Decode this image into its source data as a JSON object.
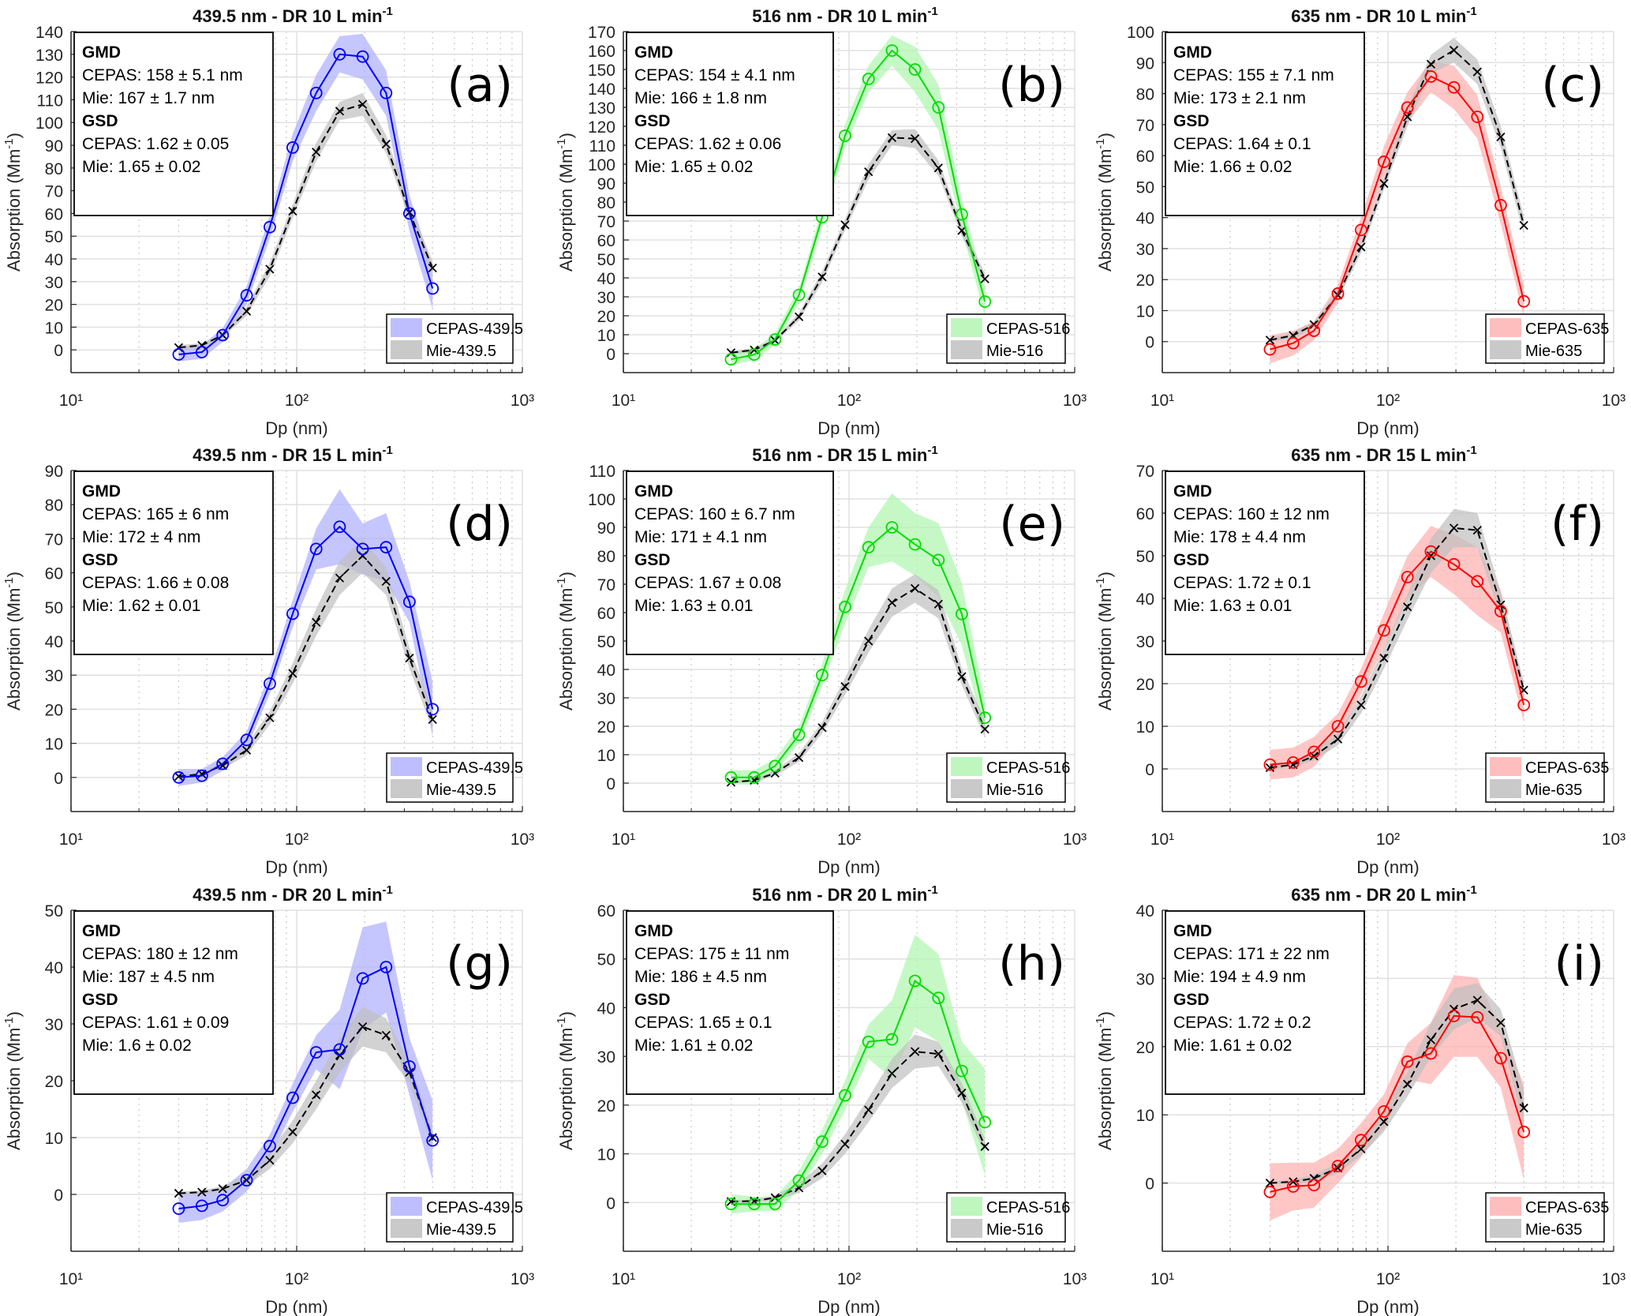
{
  "figure": {
    "xlabel": "Dp (nm)",
    "ylabel": "Absorption (Mm⁻¹)",
    "xticks": [
      "10¹",
      "10²",
      "10³"
    ],
    "colors": {
      "439.5": {
        "line": "#0000ff",
        "band": "#b3b3ff"
      },
      "516": {
        "line": "#00dd00",
        "band": "#b3f5b3"
      },
      "635": {
        "line": "#ff0000",
        "band": "#ffb3b3"
      },
      "mie": {
        "line": "#000000",
        "band": "#bfbfbf"
      }
    }
  },
  "chart_data": [
    {
      "id": "a",
      "type": "line",
      "tag": "(a)",
      "title": "439.5 nm - DR 10 L min",
      "title_sup": "-1",
      "xlabel": "Dp (nm)",
      "ylabel": "Absorption (Mm-1)",
      "xscale": "log",
      "xlim": [
        10,
        1000
      ],
      "ylim": [
        -10,
        140
      ],
      "ystep": 10,
      "grid": true,
      "legend": [
        "CEPAS-439.5",
        "Mie-439.5"
      ],
      "legend_position": "bottom-right",
      "wavelength": "439.5",
      "annotation": {
        "gmd_head": "GMD",
        "gmd_cepas": "CEPAS: 158 ± 5.1 nm",
        "gmd_mie": "Mie: 167 ± 1.7 nm",
        "gsd_head": "GSD",
        "gsd_cepas": "CEPAS: 1.62 ± 0.05",
        "gsd_mie": "Mie: 1.65 ± 0.02"
      },
      "x": [
        30,
        38,
        47,
        60,
        76,
        96,
        122,
        155,
        196,
        249,
        316,
        400
      ],
      "series": [
        {
          "name": "CEPAS-439.5",
          "values": [
            -2,
            -1,
            6.5,
            24,
            54,
            89,
            113,
            130,
            129,
            113,
            60,
            27
          ],
          "band": [
            3,
            3,
            3,
            4,
            5,
            6,
            8,
            8,
            10,
            10,
            8,
            9
          ]
        },
        {
          "name": "Mie-439.5",
          "values": [
            1,
            2,
            6.5,
            17,
            35.5,
            61,
            87,
            105,
            108,
            90.5,
            60.5,
            36
          ],
          "band": [
            1,
            1,
            1,
            2,
            3,
            3,
            4,
            4,
            5,
            4,
            3,
            3
          ]
        }
      ]
    },
    {
      "id": "b",
      "type": "line",
      "tag": "(b)",
      "title": "516 nm - DR 10 L min",
      "title_sup": "-1",
      "xlabel": "Dp (nm)",
      "ylabel": "Absorption (Mm-1)",
      "xscale": "log",
      "xlim": [
        10,
        1000
      ],
      "ylim": [
        -10,
        170
      ],
      "ystep": 10,
      "grid": true,
      "legend": [
        "CEPAS-516",
        "Mie-516"
      ],
      "legend_position": "bottom-right",
      "wavelength": "516",
      "annotation": {
        "gmd_head": "GMD",
        "gmd_cepas": "CEPAS: 154 ± 4.1 nm",
        "gmd_mie": "Mie: 166 ± 1.8 nm",
        "gsd_head": "GSD",
        "gsd_cepas": "CEPAS: 1.62 ± 0.06",
        "gsd_mie": "Mie: 1.65 ± 0.02"
      },
      "x": [
        30,
        38,
        47,
        60,
        76,
        96,
        122,
        155,
        196,
        249,
        316,
        400
      ],
      "series": [
        {
          "name": "CEPAS-516",
          "values": [
            -3,
            -0.5,
            7.5,
            31,
            72,
            115,
            145,
            160,
            150,
            130,
            73.5,
            27.5
          ],
          "band": [
            3,
            3,
            3,
            4,
            5,
            6,
            7,
            8,
            12,
            12,
            8,
            8
          ]
        },
        {
          "name": "Mie-516",
          "values": [
            0.5,
            2,
            7,
            19.5,
            40.5,
            68,
            96,
            114,
            113.5,
            98,
            65,
            39.5
          ],
          "band": [
            1,
            1,
            1,
            2,
            3,
            3,
            4,
            4,
            5,
            4,
            3,
            3
          ]
        }
      ]
    },
    {
      "id": "c",
      "type": "line",
      "tag": "(c)",
      "title": "635 nm - DR 10 L min",
      "title_sup": "-1",
      "xlabel": "Dp (nm)",
      "ylabel": "Absorption (Mm-1)",
      "xscale": "log",
      "xlim": [
        10,
        1000
      ],
      "ylim": [
        -10,
        100
      ],
      "ystep": 10,
      "grid": true,
      "legend": [
        "CEPAS-635",
        "Mie-635"
      ],
      "legend_position": "bottom-right",
      "wavelength": "635",
      "annotation": {
        "gmd_head": "GMD",
        "gmd_cepas": "CEPAS: 155 ± 7.1 nm",
        "gmd_mie": "Mie: 173 ± 2.1 nm",
        "gsd_head": "GSD",
        "gsd_cepas": "CEPAS: 1.64 ± 0.1",
        "gsd_mie": "Mie: 1.66 ± 0.02"
      },
      "x": [
        30,
        38,
        47,
        60,
        76,
        96,
        122,
        155,
        196,
        249,
        316,
        400
      ],
      "series": [
        {
          "name": "CEPAS-635",
          "values": [
            -2.5,
            -0.5,
            3.5,
            15.5,
            36,
            58,
            75.5,
            85.5,
            82,
            72.5,
            44,
            13
          ],
          "band": [
            4.5,
            4,
            3,
            3,
            4,
            5,
            5,
            5,
            7,
            7,
            6,
            5
          ]
        },
        {
          "name": "Mie-635",
          "values": [
            0.5,
            2,
            5.5,
            15,
            30.5,
            51,
            72.5,
            89.5,
            94,
            87,
            66,
            37.5
          ],
          "band": [
            0.5,
            1,
            1,
            1.5,
            2,
            2,
            3,
            3,
            4,
            4,
            3.5,
            3
          ]
        }
      ]
    },
    {
      "id": "d",
      "type": "line",
      "tag": "(d)",
      "title": "439.5 nm - DR 15 L min",
      "title_sup": "-1",
      "xlabel": "Dp (nm)",
      "ylabel": "Absorption (Mm-1)",
      "xscale": "log",
      "xlim": [
        10,
        1000
      ],
      "ylim": [
        -10,
        90
      ],
      "ystep": 10,
      "grid": true,
      "legend": [
        "CEPAS-439.5",
        "Mie-439.5"
      ],
      "legend_position": "bottom-right",
      "wavelength": "439.5",
      "annotation": {
        "gmd_head": "GMD",
        "gmd_cepas": "CEPAS: 165 ± 6 nm",
        "gmd_mie": "Mie: 172 ± 4 nm",
        "gsd_head": "GSD",
        "gsd_cepas": "CEPAS: 1.66 ± 0.08",
        "gsd_mie": "Mie: 1.62 ± 0.01"
      },
      "x": [
        30,
        38,
        47,
        60,
        76,
        96,
        122,
        155,
        196,
        249,
        316,
        400
      ],
      "series": [
        {
          "name": "CEPAS-439.5",
          "values": [
            0,
            0.5,
            4,
            11,
            27.5,
            48,
            67,
            73.5,
            67,
            67.5,
            51.5,
            20
          ],
          "band": [
            2.5,
            2,
            2,
            2.5,
            3,
            4,
            6,
            11,
            7.5,
            10,
            6,
            8
          ]
        },
        {
          "name": "Mie-439.5",
          "values": [
            0.3,
            1,
            3.5,
            8,
            17.5,
            30.5,
            45.5,
            58.5,
            65,
            57.5,
            35,
            17
          ],
          "band": [
            0.5,
            0.5,
            1,
            1.5,
            2,
            3,
            4,
            5,
            5,
            4,
            3,
            3
          ]
        }
      ]
    },
    {
      "id": "e",
      "type": "line",
      "tag": "(e)",
      "title": "516 nm - DR 15 L min",
      "title_sup": "-1",
      "xlabel": "Dp (nm)",
      "ylabel": "Absorption (Mm-1)",
      "xscale": "log",
      "xlim": [
        10,
        1000
      ],
      "ylim": [
        -10,
        110
      ],
      "ystep": 10,
      "grid": true,
      "legend": [
        "CEPAS-516",
        "Mie-516"
      ],
      "legend_position": "bottom-right",
      "wavelength": "516",
      "annotation": {
        "gmd_head": "GMD",
        "gmd_cepas": "CEPAS: 160 ± 6.7 nm",
        "gmd_mie": "Mie: 171 ± 4.1 nm",
        "gsd_head": "GSD",
        "gsd_cepas": "CEPAS: 1.67 ± 0.08",
        "gsd_mie": "Mie: 1.63 ± 0.01"
      },
      "x": [
        30,
        38,
        47,
        60,
        76,
        96,
        122,
        155,
        196,
        249,
        316,
        400
      ],
      "series": [
        {
          "name": "CEPAS-516",
          "values": [
            2,
            2,
            6,
            17,
            38,
            62,
            83,
            90,
            84,
            78.5,
            59.5,
            23
          ],
          "band": [
            2.5,
            2.5,
            2.5,
            3,
            4,
            6,
            7,
            12,
            11,
            13,
            11,
            6
          ]
        },
        {
          "name": "Mie-516",
          "values": [
            0.3,
            1,
            3.5,
            9,
            19.5,
            34,
            50,
            63.5,
            68.5,
            63,
            37.5,
            19
          ],
          "band": [
            0.5,
            0.5,
            1,
            1.5,
            2,
            3,
            4,
            5,
            5,
            5,
            3,
            3
          ]
        }
      ]
    },
    {
      "id": "f",
      "type": "line",
      "tag": "(f)",
      "title": "635 nm - DR 15 L min",
      "title_sup": "-1",
      "xlabel": "Dp (nm)",
      "ylabel": "Absorption (Mm-1)",
      "xscale": "log",
      "xlim": [
        10,
        1000
      ],
      "ylim": [
        -10,
        70
      ],
      "ystep": 10,
      "grid": true,
      "legend": [
        "CEPAS-635",
        "Mie-635"
      ],
      "legend_position": "bottom-right",
      "wavelength": "635",
      "annotation": {
        "gmd_head": "GMD",
        "gmd_cepas": "CEPAS: 160 ± 12 nm",
        "gmd_mie": "Mie: 178 ± 4.4 nm",
        "gsd_head": "GSD",
        "gsd_cepas": "CEPAS: 1.72 ± 0.1",
        "gsd_mie": "Mie: 1.63 ± 0.01"
      },
      "x": [
        30,
        38,
        47,
        60,
        76,
        96,
        122,
        155,
        196,
        249,
        316,
        400
      ],
      "series": [
        {
          "name": "CEPAS-635",
          "values": [
            1,
            1.5,
            4,
            10,
            20.5,
            32.5,
            45,
            51,
            48,
            44,
            37,
            15
          ],
          "band": [
            3.5,
            3.5,
            3.5,
            3,
            3,
            4,
            5,
            6,
            7,
            8,
            5,
            4
          ]
        },
        {
          "name": "Mie-635",
          "values": [
            0.3,
            1,
            3,
            7,
            15,
            26,
            38,
            50,
            56.5,
            56,
            38.5,
            18.5
          ],
          "band": [
            0.5,
            0.5,
            1,
            1.5,
            2,
            2.5,
            3,
            4,
            4.5,
            4,
            3,
            2
          ]
        }
      ]
    },
    {
      "id": "g",
      "type": "line",
      "tag": "(g)",
      "title": "439.5 nm - DR 20 L min",
      "title_sup": "-1",
      "xlabel": "Dp (nm)",
      "ylabel": "Absorption (Mm-1)",
      "xscale": "log",
      "xlim": [
        10,
        1000
      ],
      "ylim": [
        -10,
        50
      ],
      "ystep": 10,
      "grid": true,
      "legend": [
        "CEPAS-439.5",
        "Mie-439.5"
      ],
      "legend_position": "bottom-right",
      "wavelength": "439.5",
      "annotation": {
        "gmd_head": "GMD",
        "gmd_cepas": "CEPAS: 180 ± 12 nm",
        "gmd_mie": "Mie: 187 ± 4.5 nm",
        "gsd_head": "GSD",
        "gsd_cepas": "CEPAS: 1.61 ± 0.09",
        "gsd_mie": "Mie: 1.6 ± 0.02"
      },
      "x": [
        30,
        38,
        47,
        60,
        76,
        96,
        122,
        155,
        196,
        249,
        316,
        400
      ],
      "series": [
        {
          "name": "CEPAS-439.5",
          "values": [
            -2.5,
            -2,
            -1,
            2.5,
            8.5,
            17,
            25,
            25.5,
            38,
            40,
            22.5,
            9.5
          ],
          "band": [
            2.5,
            2.5,
            2,
            2,
            2,
            2.5,
            3,
            7,
            9,
            8,
            5,
            7
          ]
        },
        {
          "name": "Mie-439.5",
          "values": [
            0.2,
            0.4,
            1,
            2.5,
            6,
            11,
            17.5,
            24.5,
            29.5,
            28,
            21.5,
            10
          ],
          "band": [
            0.3,
            0.3,
            0.5,
            1,
            1.5,
            2,
            2.5,
            3,
            3.5,
            3,
            2,
            1.5
          ]
        }
      ]
    },
    {
      "id": "h",
      "type": "line",
      "tag": "(h)",
      "title": "516 nm - DR 20 L min",
      "title_sup": "-1",
      "xlabel": "Dp (nm)",
      "ylabel": "Absorption (Mm-1)",
      "xscale": "log",
      "xlim": [
        10,
        1000
      ],
      "ylim": [
        -10,
        60
      ],
      "ystep": 10,
      "grid": true,
      "legend": [
        "CEPAS-516",
        "Mie-516"
      ],
      "legend_position": "bottom-right",
      "wavelength": "516",
      "annotation": {
        "gmd_head": "GMD",
        "gmd_cepas": "CEPAS: 175 ± 11 nm",
        "gmd_mie": "Mie: 186 ± 4.5 nm",
        "gsd_head": "GSD",
        "gsd_cepas": "CEPAS: 1.65 ± 0.1",
        "gsd_mie": "Mie: 1.61 ± 0.02"
      },
      "x": [
        30,
        38,
        47,
        60,
        76,
        96,
        122,
        155,
        196,
        249,
        316,
        400
      ],
      "series": [
        {
          "name": "CEPAS-516",
          "values": [
            -0.3,
            -0.3,
            -0.3,
            4.5,
            12.5,
            22,
            33,
            33.5,
            45.5,
            42,
            27,
            16.5
          ],
          "band": [
            2,
            1.5,
            1.5,
            2,
            2.5,
            3,
            3.5,
            8,
            9.5,
            9,
            6,
            11
          ]
        },
        {
          "name": "Mie-516",
          "values": [
            0.2,
            0.3,
            1,
            3,
            6.5,
            12,
            19,
            26.5,
            31,
            30.5,
            22.5,
            11.5
          ],
          "band": [
            0.3,
            0.3,
            0.5,
            1,
            1.5,
            2,
            2.5,
            3,
            3.5,
            2.5,
            2,
            1.5
          ]
        }
      ]
    },
    {
      "id": "i",
      "type": "line",
      "tag": "(i)",
      "title": "635 nm - DR 20 L min",
      "title_sup": "-1",
      "xlabel": "Dp (nm)",
      "ylabel": "Absorption (Mm-1)",
      "xscale": "log",
      "xlim": [
        10,
        1000
      ],
      "ylim": [
        -10,
        40
      ],
      "ystep": 10,
      "grid": true,
      "legend": [
        "CEPAS-635",
        "Mie-635"
      ],
      "legend_position": "bottom-right",
      "wavelength": "635",
      "annotation": {
        "gmd_head": "GMD",
        "gmd_cepas": "CEPAS: 171 ± 22 nm",
        "gmd_mie": "Mie: 194 ± 4.9 nm",
        "gsd_head": "GSD",
        "gsd_cepas": "CEPAS: 1.72 ± 0.2",
        "gsd_mie": "Mie: 1.61 ± 0.02"
      },
      "x": [
        30,
        38,
        47,
        60,
        76,
        96,
        122,
        155,
        196,
        249,
        316,
        400
      ],
      "series": [
        {
          "name": "CEPAS-635",
          "values": [
            -1.3,
            -0.5,
            -0.3,
            2.5,
            6.3,
            10.5,
            17.8,
            19,
            24.5,
            24.3,
            18.3,
            7.5
          ],
          "band": [
            4.2,
            3.5,
            3.3,
            2.5,
            2.5,
            2.5,
            2.7,
            4.5,
            6,
            5.8,
            4.3,
            7
          ]
        },
        {
          "name": "Mie-635",
          "values": [
            0,
            0.2,
            0.7,
            2.2,
            5,
            9,
            14.5,
            21,
            25.5,
            26.8,
            23.5,
            11
          ],
          "band": [
            0.2,
            0.3,
            0.5,
            0.8,
            1,
            1.5,
            1.8,
            2.5,
            3,
            2.5,
            2,
            2.5
          ]
        }
      ]
    }
  ]
}
